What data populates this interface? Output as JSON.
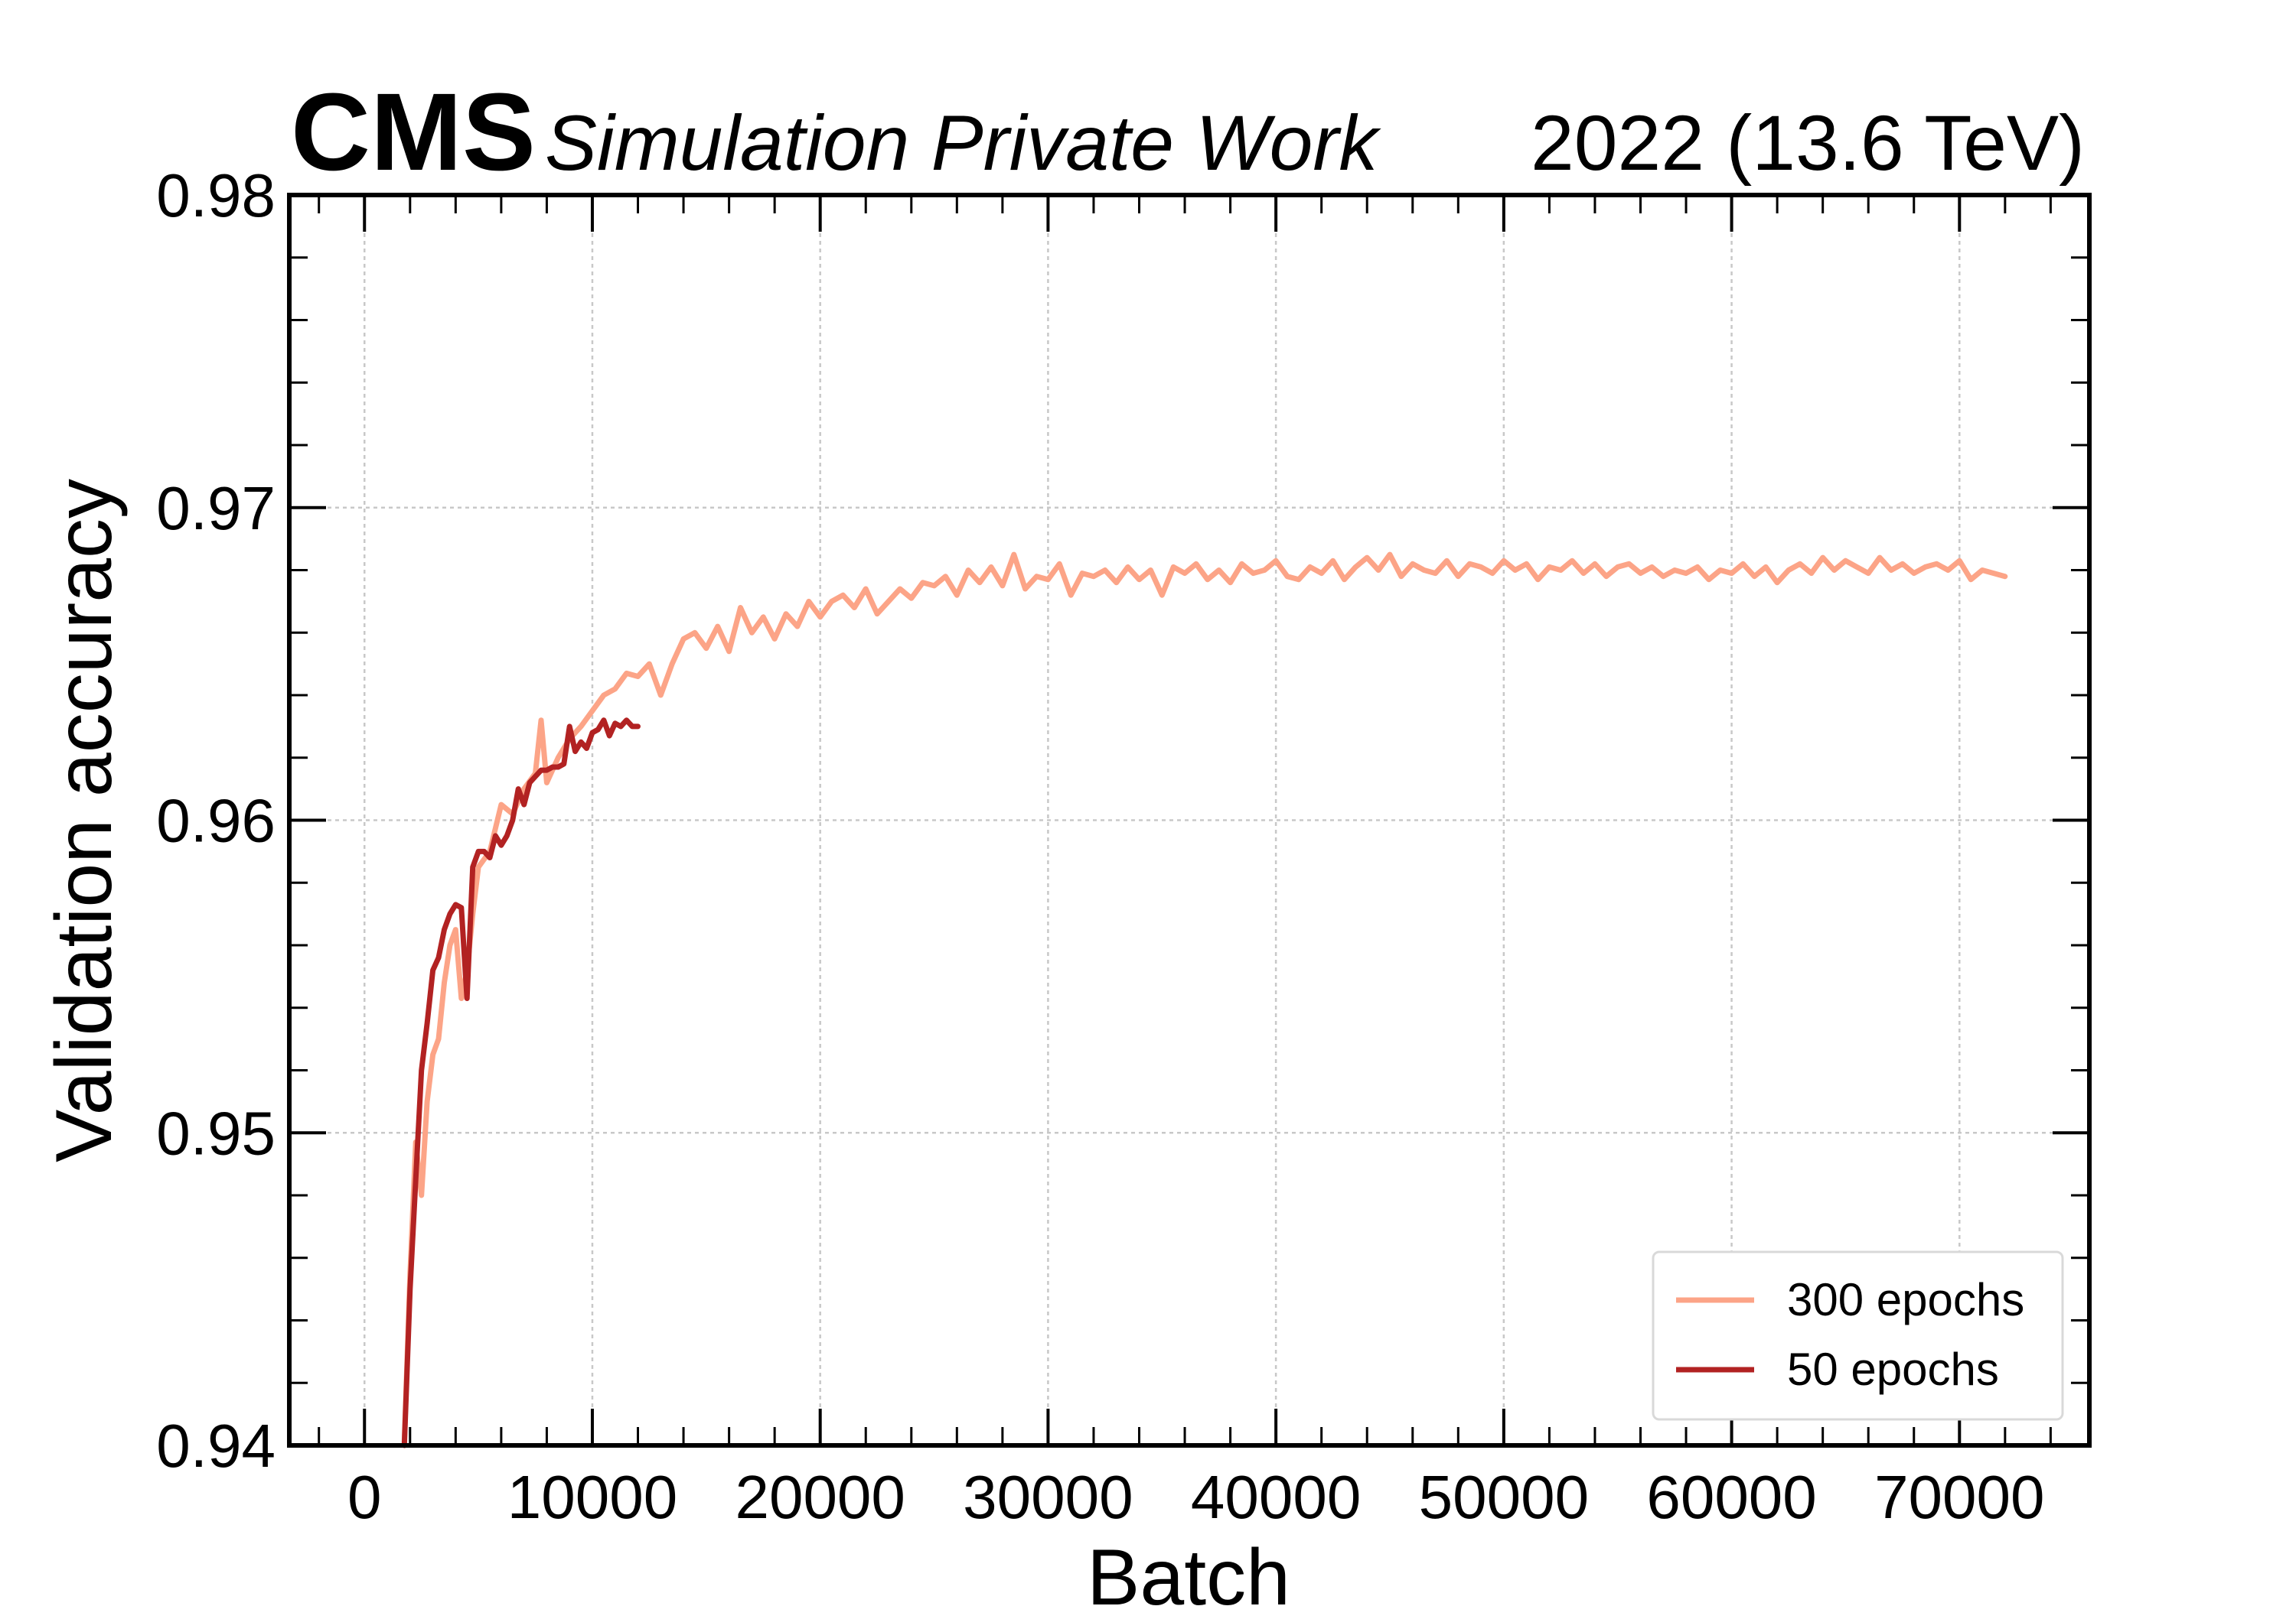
{
  "header": {
    "experiment": "CMS",
    "status": "Simulation Private Work",
    "lumi": "2022 (13.6 TeV)"
  },
  "chart_data": {
    "type": "line",
    "xlabel": "Batch",
    "ylabel": "Validation accuracy",
    "xlim": [
      -3300,
      75700
    ],
    "ylim": [
      0.94,
      0.98
    ],
    "xticks": [
      0,
      10000,
      20000,
      30000,
      40000,
      50000,
      60000,
      70000
    ],
    "yticks": [
      0.94,
      0.95,
      0.96,
      0.97,
      0.98
    ],
    "xtick_labels": [
      "0",
      "10000",
      "20000",
      "30000",
      "40000",
      "50000",
      "60000",
      "70000"
    ],
    "ytick_labels": [
      "0.94",
      "0.95",
      "0.96",
      "0.97",
      "0.98"
    ],
    "grid": true,
    "legend_position": "bottom-right",
    "series": [
      {
        "name": "300 epochs",
        "color": "#fca487",
        "x": [
          1750,
          2000,
          2250,
          2500,
          2750,
          3000,
          3250,
          3500,
          3750,
          4000,
          4250,
          4500,
          4750,
          5000,
          5500,
          6000,
          6500,
          7000,
          7500,
          7750,
          8000,
          8500,
          9000,
          9500,
          10000,
          10500,
          11000,
          11500,
          12000,
          12500,
          13000,
          13500,
          14000,
          14500,
          15000,
          15500,
          16000,
          16500,
          17000,
          17500,
          18000,
          18500,
          19000,
          19500,
          20000,
          20500,
          21000,
          21500,
          22000,
          22500,
          23000,
          23500,
          24000,
          24500,
          25000,
          25500,
          26000,
          26500,
          27000,
          27500,
          28000,
          28500,
          29000,
          29500,
          30000,
          30500,
          31000,
          31500,
          32000,
          32500,
          33000,
          33500,
          34000,
          34500,
          35000,
          35500,
          36000,
          36500,
          37000,
          37500,
          38000,
          38500,
          39000,
          39500,
          40000,
          40500,
          41000,
          41500,
          42000,
          42500,
          43000,
          43500,
          44000,
          44500,
          45000,
          45500,
          46000,
          46500,
          47000,
          47500,
          48000,
          48500,
          49000,
          49500,
          50000,
          50500,
          51000,
          51500,
          52000,
          52500,
          53000,
          53500,
          54000,
          54500,
          55000,
          55500,
          56000,
          56500,
          57000,
          57500,
          58000,
          58500,
          59000,
          59500,
          60000,
          60500,
          61000,
          61500,
          62000,
          62500,
          63000,
          63500,
          64000,
          64500,
          65000,
          65500,
          66000,
          66500,
          67000,
          67500,
          68000,
          68500,
          69000,
          69500,
          70000,
          70500,
          71000,
          71500,
          72000
        ],
        "values": [
          0.9401,
          0.9455,
          0.9497,
          0.948,
          0.951,
          0.9525,
          0.953,
          0.9548,
          0.956,
          0.9565,
          0.9543,
          0.9552,
          0.957,
          0.9585,
          0.959,
          0.9605,
          0.9602,
          0.961,
          0.9615,
          0.9632,
          0.9612,
          0.962,
          0.9626,
          0.963,
          0.9635,
          0.964,
          0.9642,
          0.9647,
          0.9646,
          0.965,
          0.964,
          0.965,
          0.9658,
          0.966,
          0.9655,
          0.9662,
          0.9654,
          0.9668,
          0.966,
          0.9665,
          0.9658,
          0.9666,
          0.9662,
          0.967,
          0.9665,
          0.967,
          0.9672,
          0.9668,
          0.9674,
          0.9666,
          0.967,
          0.9674,
          0.9671,
          0.9676,
          0.9675,
          0.9678,
          0.9672,
          0.968,
          0.9676,
          0.9681,
          0.9675,
          0.9685,
          0.9674,
          0.9678,
          0.9677,
          0.9682,
          0.9672,
          0.9679,
          0.9678,
          0.968,
          0.9676,
          0.9681,
          0.9677,
          0.968,
          0.9672,
          0.9681,
          0.9679,
          0.9682,
          0.9677,
          0.968,
          0.9676,
          0.9682,
          0.9679,
          0.968,
          0.9683,
          0.9678,
          0.9677,
          0.9681,
          0.9679,
          0.9683,
          0.9677,
          0.9681,
          0.9684,
          0.968,
          0.9685,
          0.9678,
          0.9682,
          0.968,
          0.9679,
          0.9683,
          0.9678,
          0.9682,
          0.9681,
          0.9679,
          0.9683,
          0.968,
          0.9682,
          0.9677,
          0.9681,
          0.968,
          0.9683,
          0.9679,
          0.9682,
          0.9678,
          0.9681,
          0.9682,
          0.9679,
          0.9681,
          0.9678,
          0.968,
          0.9679,
          0.9681,
          0.9677,
          0.968,
          0.9679,
          0.9682,
          0.9678,
          0.9681,
          0.9676,
          0.968,
          0.9682,
          0.9679,
          0.9684,
          0.968,
          0.9683,
          0.9681,
          0.9679,
          0.9684,
          0.968,
          0.9682,
          0.9679,
          0.9681,
          0.9682,
          0.968,
          0.9683,
          0.9677,
          0.968,
          0.9679,
          0.9678
        ]
      },
      {
        "name": "50 epochs",
        "color": "#b22222",
        "x": [
          1750,
          2000,
          2250,
          2500,
          2750,
          3000,
          3250,
          3500,
          3750,
          4000,
          4250,
          4500,
          4750,
          5000,
          5250,
          5500,
          5750,
          6000,
          6250,
          6500,
          6750,
          7000,
          7250,
          7500,
          7750,
          8000,
          8250,
          8500,
          8750,
          9000,
          9250,
          9500,
          9750,
          10000,
          10250,
          10500,
          10750,
          11000,
          11250,
          11500,
          11750,
          12000
        ],
        "values": [
          0.94,
          0.945,
          0.9485,
          0.952,
          0.9535,
          0.9552,
          0.9556,
          0.9565,
          0.957,
          0.9573,
          0.9572,
          0.9543,
          0.9585,
          0.959,
          0.959,
          0.9588,
          0.9595,
          0.9592,
          0.9595,
          0.96,
          0.961,
          0.9605,
          0.9612,
          0.9614,
          0.9616,
          0.9616,
          0.9617,
          0.9617,
          0.9618,
          0.963,
          0.9622,
          0.9625,
          0.9623,
          0.9628,
          0.9629,
          0.9632,
          0.9627,
          0.9631,
          0.963,
          0.9632,
          0.963,
          0.963
        ]
      }
    ]
  }
}
